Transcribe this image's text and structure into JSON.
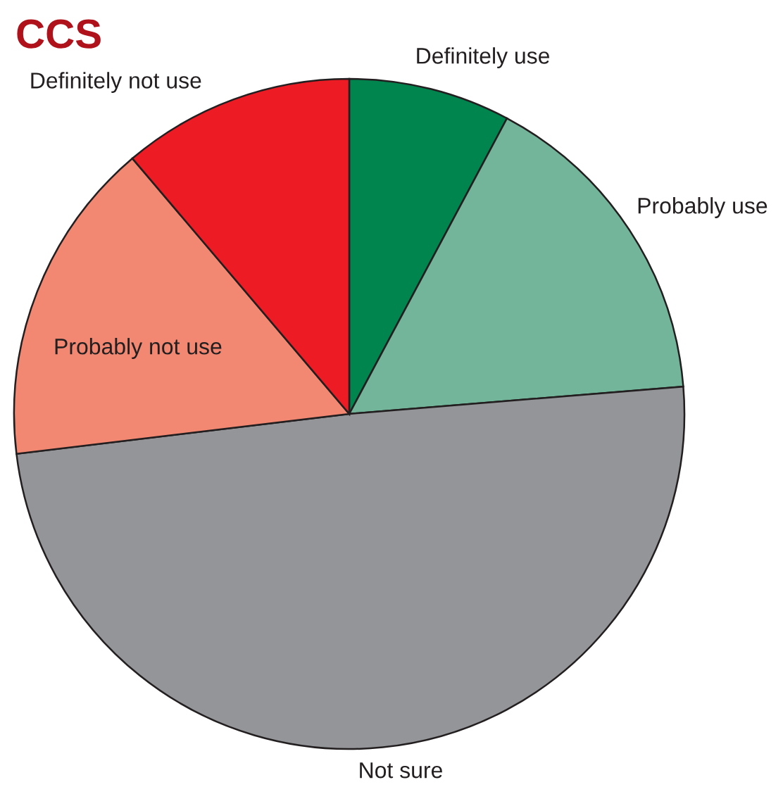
{
  "chart_data": {
    "type": "pie",
    "title": "CCS",
    "categories": [
      "Definitely use",
      "Probably use",
      "Not sure",
      "Probably not use",
      "Definitely not use"
    ],
    "values": [
      7.8,
      15.9,
      49.4,
      15.7,
      11.2
    ],
    "colors": [
      "#00854f",
      "#72b59a",
      "#939598",
      "#f28872",
      "#ed1c24"
    ]
  }
}
